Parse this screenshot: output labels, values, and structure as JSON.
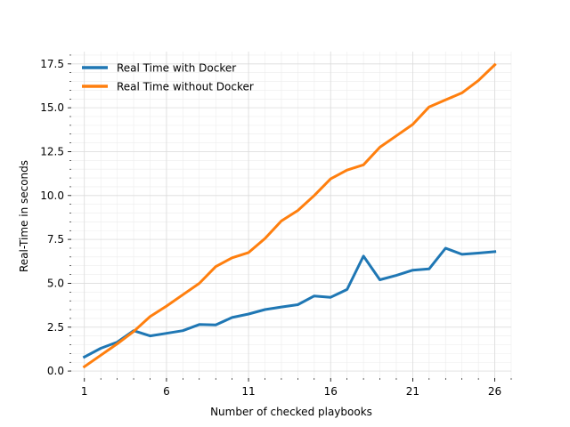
{
  "chart_data": {
    "type": "line",
    "title": "",
    "xlabel": "Number of checked playbooks",
    "ylabel": "Real-Time in seconds",
    "xlim": [
      0.2,
      27.0
    ],
    "ylim": [
      -0.4,
      18.2
    ],
    "xticks": [
      1,
      6,
      11,
      16,
      21,
      26
    ],
    "xtick_labels": [
      "1",
      "6",
      "11",
      "16",
      "21",
      "26"
    ],
    "yticks": [
      0.0,
      2.5,
      5.0,
      7.5,
      10.0,
      12.5,
      15.0,
      17.5
    ],
    "ytick_labels": [
      "0.0",
      "2.5",
      "5.0",
      "7.5",
      "10.0",
      "12.5",
      "15.0",
      "17.5"
    ],
    "grid": true,
    "legend_position": "top-left",
    "x": [
      1,
      2,
      3,
      4,
      5,
      6,
      7,
      8,
      9,
      10,
      11,
      12,
      13,
      14,
      15,
      16,
      17,
      18,
      19,
      20,
      21,
      22,
      23,
      24,
      25,
      26
    ],
    "series": [
      {
        "name": "Real Time with Docker",
        "color": "#1f77b4",
        "values": [
          0.8,
          1.3,
          1.65,
          2.3,
          2.0,
          2.15,
          2.3,
          2.65,
          2.63,
          3.05,
          3.25,
          3.5,
          3.65,
          3.78,
          4.28,
          4.2,
          4.65,
          6.55,
          5.2,
          5.45,
          5.75,
          5.82,
          7.0,
          6.65,
          6.72,
          6.8
        ]
      },
      {
        "name": "Real Time without Docker",
        "color": "#ff7f0e",
        "values": [
          0.25,
          0.9,
          1.55,
          2.25,
          3.1,
          3.7,
          4.35,
          5.0,
          5.95,
          6.45,
          6.75,
          7.55,
          8.55,
          9.15,
          10.0,
          10.95,
          11.45,
          11.75,
          12.75,
          13.4,
          14.05,
          15.05,
          15.45,
          15.85,
          16.55,
          17.45
        ]
      }
    ]
  }
}
